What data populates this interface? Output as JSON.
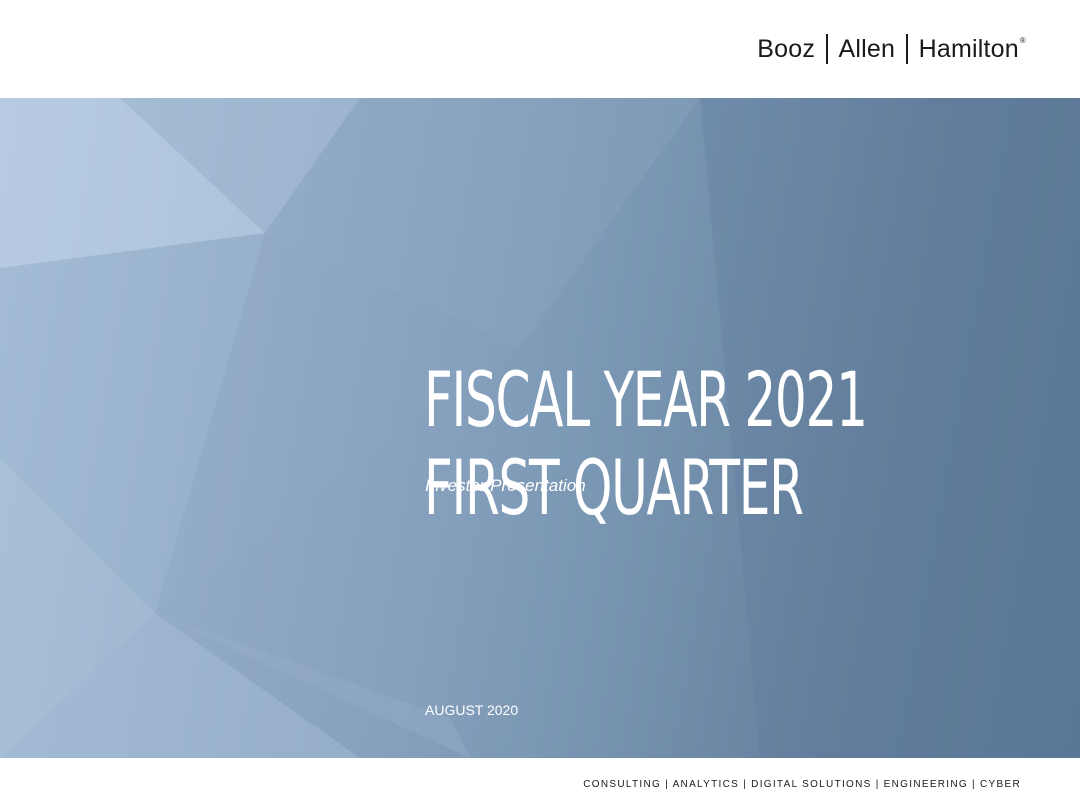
{
  "header": {
    "logo": {
      "words": [
        "Booz",
        "Allen",
        "Hamilton"
      ],
      "registered_mark": "®"
    }
  },
  "hero": {
    "title_line1": "FISCAL YEAR 2021",
    "title_line2": "FIRST QUARTER",
    "subtitle": "Investor Presentation",
    "date": "AUGUST 2020"
  },
  "footer": {
    "tagline": "CONSULTING | ANALYTICS | DIGITAL SOLUTIONS | ENGINEERING | CYBER"
  },
  "colors": {
    "background_light": "#a9c0d9",
    "background_dark": "#5a7896",
    "text_on_hero": "#ffffff",
    "text_dark": "#1a1a1a"
  }
}
